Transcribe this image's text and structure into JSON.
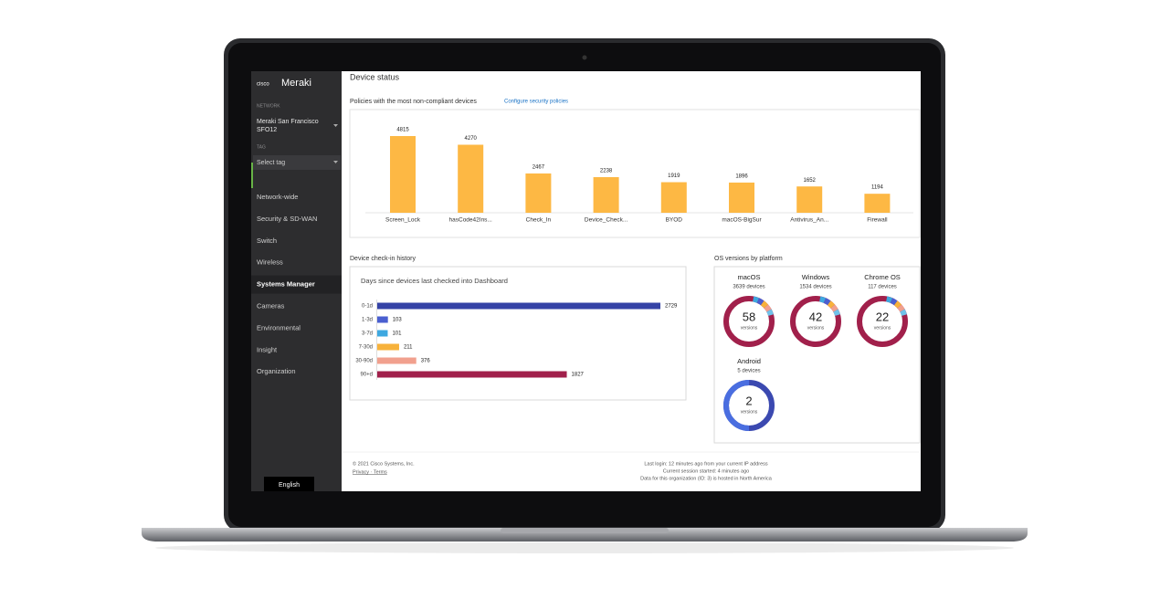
{
  "sidebar": {
    "brand_small": "cisco",
    "brand": "Meraki",
    "network_label": "NETWORK",
    "network_name": [
      "Meraki San Francisco",
      "SFO12"
    ],
    "tag_label": "TAG",
    "tag_select": "Select tag",
    "menu": [
      "Network-wide",
      "Security & SD-WAN",
      "Switch",
      "Wireless",
      "Systems Manager",
      "Cameras",
      "Environmental",
      "Insight",
      "Organization"
    ],
    "active": "Systems Manager",
    "language": "English"
  },
  "page": {
    "title": "Device status"
  },
  "policies_chart": {
    "type": "bar",
    "title": "Policies with the most non-compliant devices",
    "link": "Configure security policies",
    "categories": [
      "Screen_Lock",
      "hasCode42Ins...",
      "Check_In",
      "Device_Check...",
      "BYOD",
      "macOS-BigSur",
      "Antivirus_An...",
      "Firewall"
    ],
    "values": [
      4815,
      4270,
      2467,
      2238,
      1919,
      1896,
      1652,
      1194
    ],
    "color": "#fdb844"
  },
  "checkin_chart": {
    "type": "barh",
    "title": "Device check-in history",
    "subtitle": "Days since devices last checked into Dashboard",
    "categories": [
      "0-1d",
      "1-3d",
      "3-7d",
      "7-30d",
      "30-90d",
      "90+d"
    ],
    "values": [
      2729,
      103,
      101,
      211,
      376,
      1827
    ],
    "colors": [
      "#3543a6",
      "#4a5fd0",
      "#3ea8e0",
      "#f7b23b",
      "#f1a08e",
      "#a1204b"
    ]
  },
  "os_versions": {
    "title": "OS versions by platform",
    "platforms": [
      {
        "name": "macOS",
        "devices": "3639 devices",
        "versions": "58",
        "unit": "versions",
        "color": "#a1204b"
      },
      {
        "name": "Windows",
        "devices": "1534 devices",
        "versions": "42",
        "unit": "versions",
        "color": "#a1204b"
      },
      {
        "name": "Chrome OS",
        "devices": "117 devices",
        "versions": "22",
        "unit": "versions",
        "color": "#a1204b"
      },
      {
        "name": "Android",
        "devices": "5 devices",
        "versions": "2",
        "unit": "versions",
        "color": "#3b49b0"
      }
    ]
  },
  "footer": {
    "copyright": "© 2021 Cisco Systems, Inc.",
    "links": "Privacy · Terms",
    "last_login": "Last login: 12 minutes ago from your current IP address",
    "session": "Current session started: 4 minutes ago",
    "hosting": "Data for this organization (ID: 3) is hosted in North America"
  }
}
